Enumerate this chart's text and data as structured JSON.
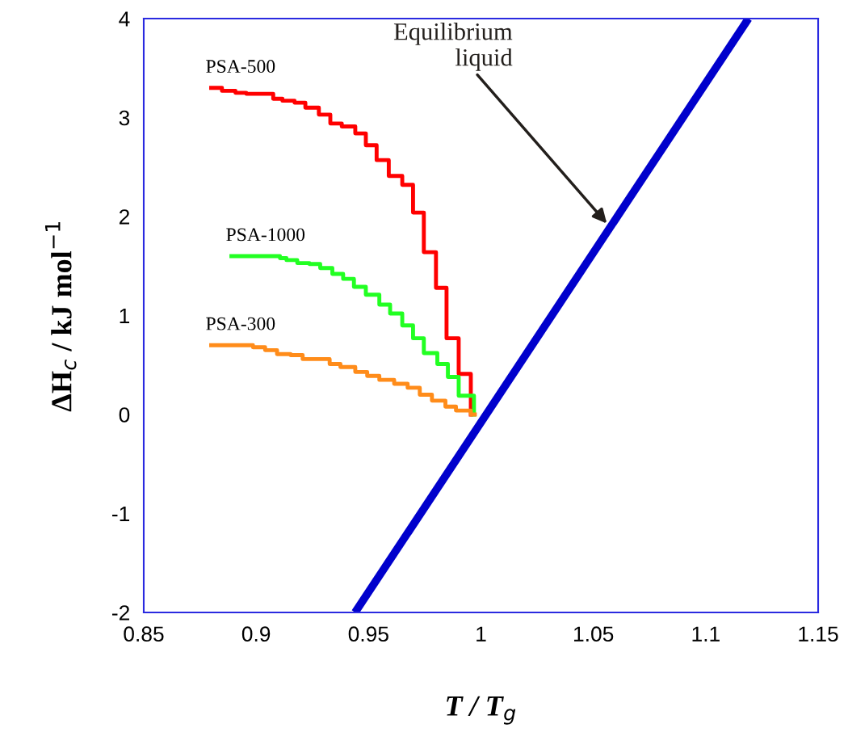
{
  "chart_data": {
    "type": "step",
    "xlabel": "T / T$_{g}$",
    "ylabel": "ΔH$_{c}$ / kJ mol$^{−1}$",
    "xlim": [
      0.85,
      1.15
    ],
    "xticks": [
      0.85,
      0.9,
      0.95,
      1,
      1.05,
      1.1,
      1.15
    ],
    "ylim": [
      -2,
      4
    ],
    "yticks": [
      -2,
      -1,
      0,
      1,
      2,
      3,
      4
    ],
    "grid": false,
    "legend": false,
    "series": [
      {
        "name": "PSA-500",
        "color": "#ff0000",
        "x": [
          0.88,
          0.8848,
          0.8908,
          0.8956,
          0.9076,
          0.9117,
          0.9171,
          0.9219,
          0.9279,
          0.933,
          0.9381,
          0.9441,
          0.9488,
          0.9536,
          0.959,
          0.965,
          0.9698,
          0.9746,
          0.98,
          0.9847,
          0.9901,
          0.9955
        ],
        "values": [
          3.3,
          3.27,
          3.25,
          3.24,
          3.19,
          3.17,
          3.15,
          3.1,
          3.03,
          2.94,
          2.91,
          2.84,
          2.72,
          2.57,
          2.41,
          2.32,
          2.04,
          1.64,
          1.28,
          0.77,
          0.41,
          0.0
        ]
      },
      {
        "name": "PSA-1000",
        "color": "#22ff22",
        "x": [
          0.889,
          0.9106,
          0.9135,
          0.9183,
          0.9237,
          0.9285,
          0.9339,
          0.9387,
          0.9435,
          0.9488,
          0.9548,
          0.9596,
          0.965,
          0.9698,
          0.9746,
          0.9806,
          0.9853,
          0.9901,
          0.9969
        ],
        "values": [
          1.6,
          1.58,
          1.56,
          1.53,
          1.52,
          1.48,
          1.42,
          1.37,
          1.29,
          1.21,
          1.11,
          1.02,
          0.9,
          0.77,
          0.62,
          0.51,
          0.38,
          0.19,
          0.0
        ]
      },
      {
        "name": "PSA-300",
        "color": "#ff8c1a",
        "x": [
          0.88,
          0.8896,
          0.8986,
          0.904,
          0.9093,
          0.9153,
          0.9207,
          0.9327,
          0.9375,
          0.9441,
          0.9494,
          0.9548,
          0.9614,
          0.9674,
          0.9728,
          0.9782,
          0.9842,
          0.9889,
          0.9955,
          0.9973
        ],
        "values": [
          0.7,
          0.7,
          0.68,
          0.65,
          0.61,
          0.6,
          0.56,
          0.51,
          0.48,
          0.43,
          0.39,
          0.35,
          0.31,
          0.27,
          0.2,
          0.14,
          0.08,
          0.04,
          0.0,
          0.0
        ]
      },
      {
        "type": "line",
        "color": "#0000cc",
        "x": [
          0.944,
          1.119
        ],
        "values": [
          -2,
          4
        ]
      }
    ],
    "annotations": [
      {
        "text": "Equilibrium\nliquid",
        "x": 1.056,
        "y": 1.93
      }
    ]
  }
}
